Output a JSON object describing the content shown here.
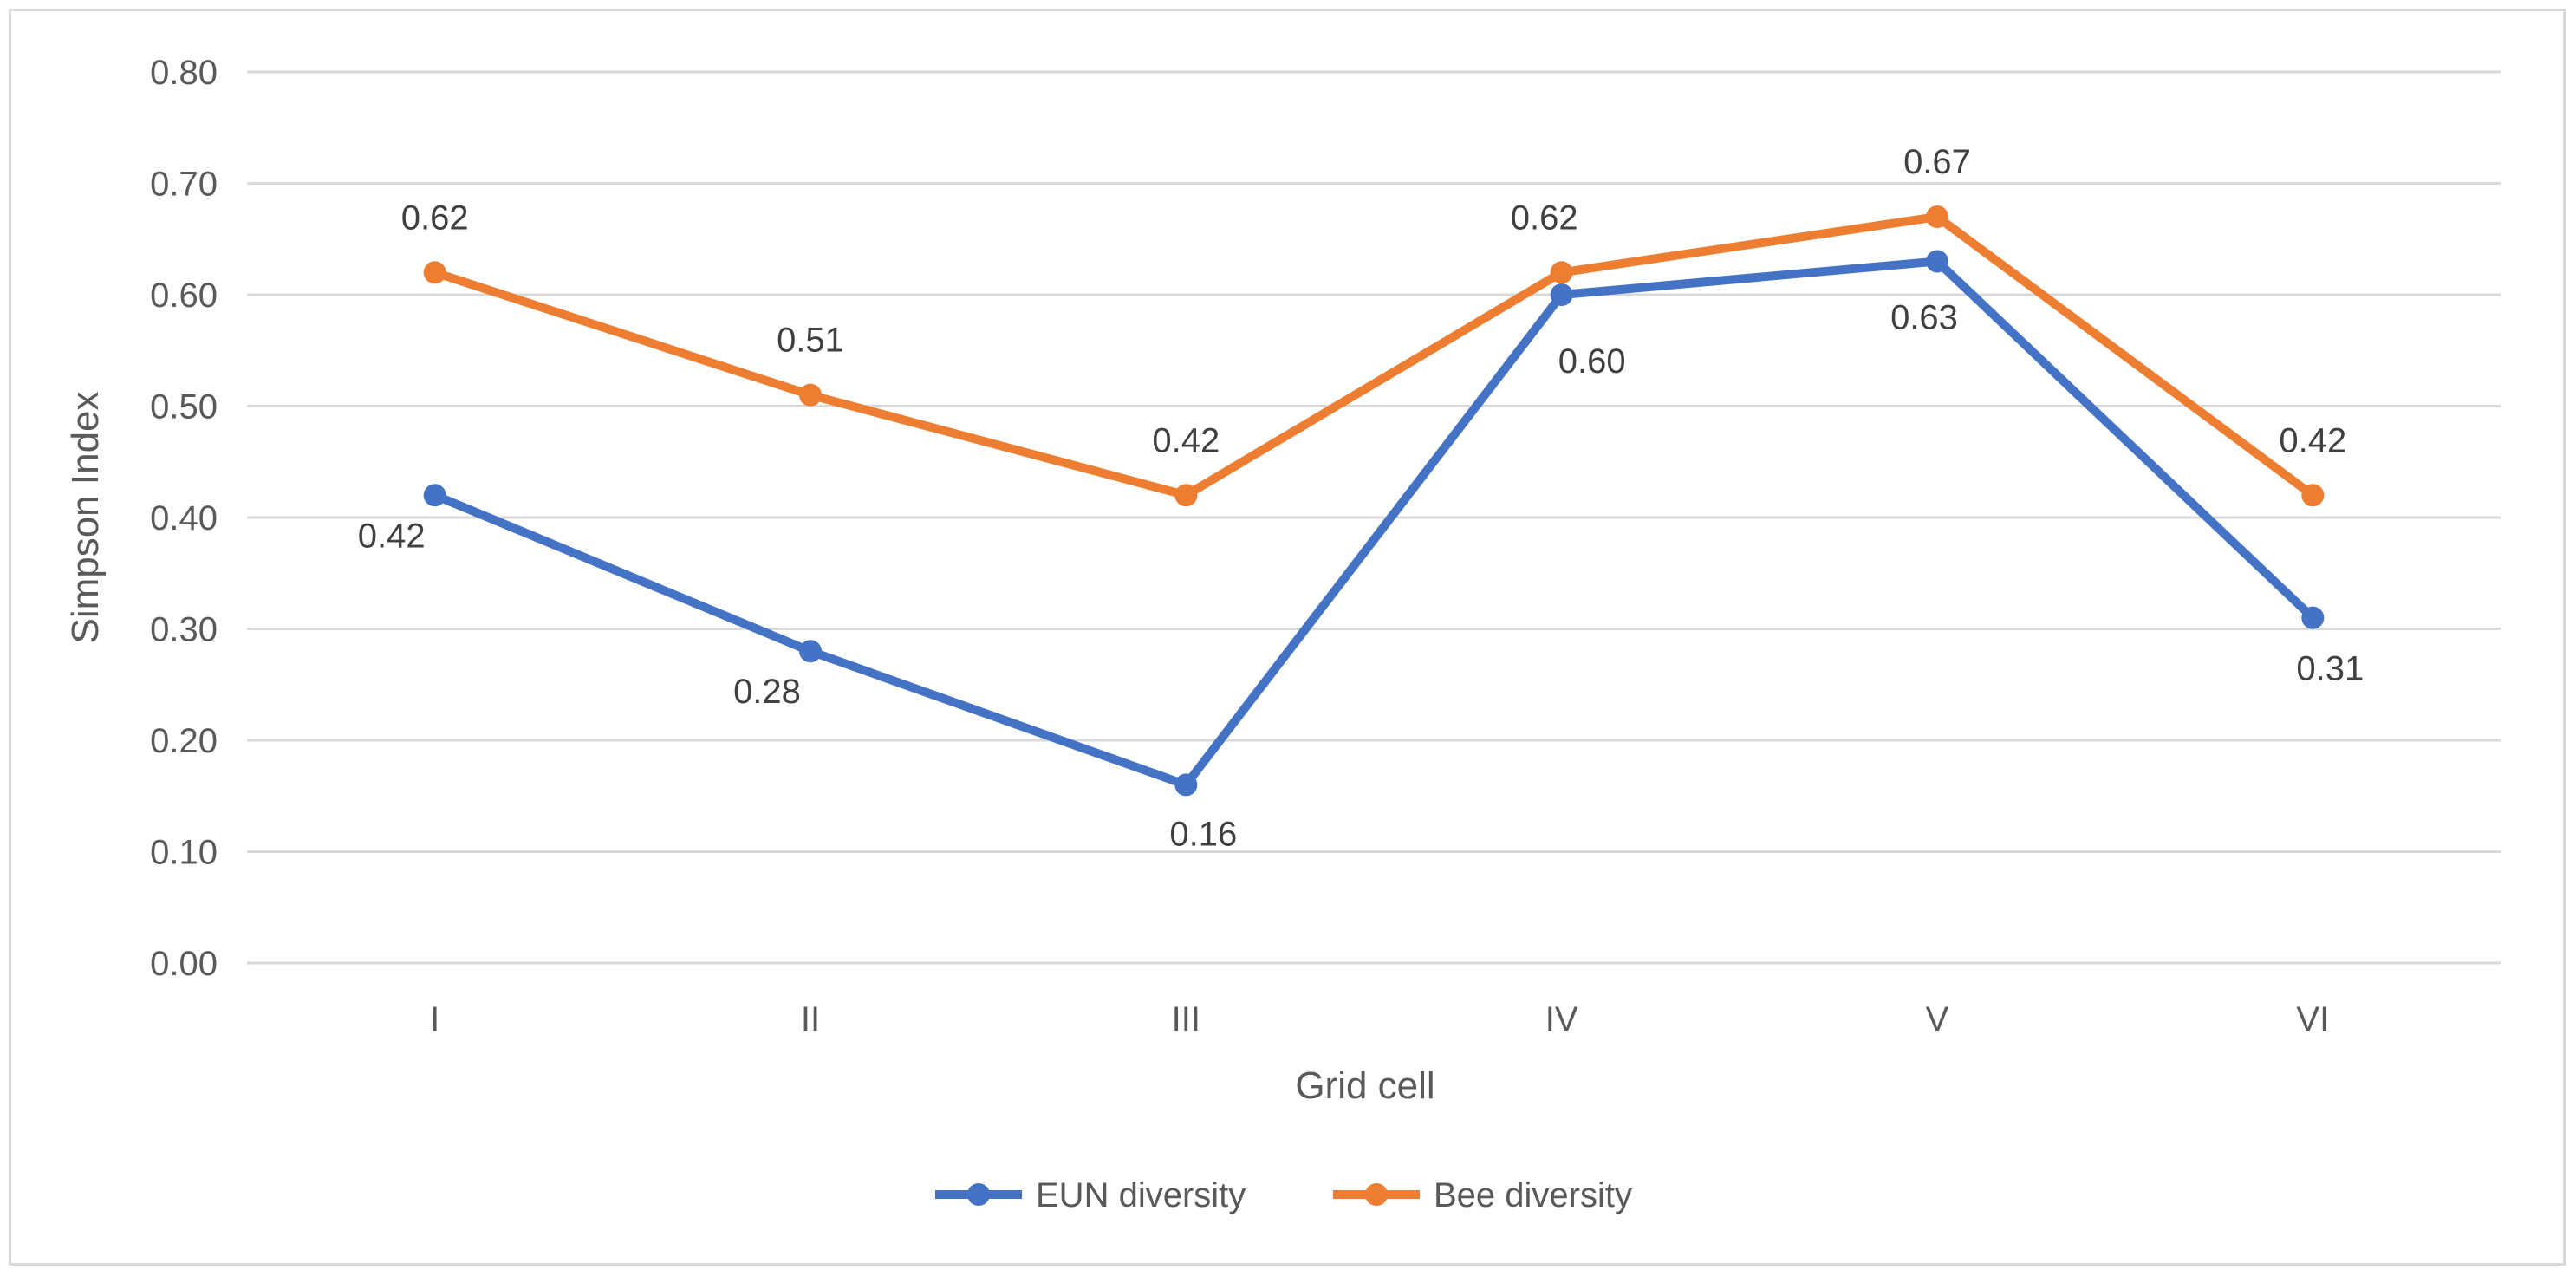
{
  "chart_data": {
    "type": "line",
    "title": "",
    "xlabel": "Grid cell",
    "ylabel": "Simpson Index",
    "categories": [
      "I",
      "II",
      "III",
      "IV",
      "V",
      "VI"
    ],
    "ylim": [
      0,
      0.8
    ],
    "ytick_step": 0.1,
    "ytick_labels": [
      "0.00",
      "0.10",
      "0.20",
      "0.30",
      "0.40",
      "0.50",
      "0.60",
      "0.70",
      "0.80"
    ],
    "grid": true,
    "legend_position": "bottom",
    "series": [
      {
        "name": "EUN diversity",
        "color": "#4472C4",
        "values": [
          0.42,
          0.28,
          0.16,
          0.6,
          0.63,
          0.31
        ],
        "labels": [
          "0.42",
          "0.28",
          "0.16",
          "0.60",
          "0.63",
          "0.31"
        ],
        "label_position": "below"
      },
      {
        "name": "Bee diversity",
        "color": "#ED7D31",
        "values": [
          0.62,
          0.51,
          0.42,
          0.62,
          0.67,
          0.42
        ],
        "labels": [
          "0.62",
          "0.51",
          "0.42",
          "0.62",
          "0.67",
          "0.42"
        ],
        "label_position": "above"
      }
    ]
  }
}
